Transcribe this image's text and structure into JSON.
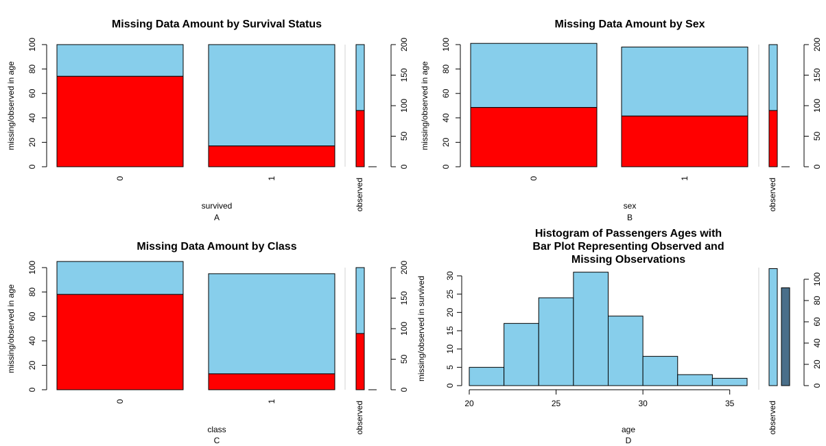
{
  "colors": {
    "missing": "#FF0000",
    "observed": "#87CEEB",
    "side_missing": "#4A6F8A",
    "axis": "#000000",
    "separator": "#D3D3D3"
  },
  "chart_data": [
    {
      "type": "bar",
      "panel": "A",
      "title": "Missing Data Amount by Survival Status",
      "xlabel": "survived",
      "ylabel": "missing/observed in age",
      "categories": [
        "0",
        "1"
      ],
      "ylim": [
        0,
        100
      ],
      "yticks": [
        "0",
        "20",
        "40",
        "60",
        "80",
        "100"
      ],
      "stack_total": [
        100,
        100
      ],
      "series": [
        {
          "name": "missing",
          "values": [
            74,
            17
          ]
        },
        {
          "name": "observed",
          "values": [
            26,
            83
          ]
        }
      ],
      "side_label": "observed",
      "side_ylim": [
        0,
        200
      ],
      "side_yticks": [
        "0",
        "50",
        "100",
        "150",
        "200"
      ],
      "side_values": {
        "missing": 92,
        "observed": 201
      }
    },
    {
      "type": "bar",
      "panel": "B",
      "title": "Missing Data Amount by Sex",
      "xlabel": "sex",
      "ylabel": "missing/observed in age",
      "categories": [
        "0",
        "1"
      ],
      "ylim": [
        0,
        100
      ],
      "yticks": [
        "0",
        "20",
        "40",
        "60",
        "80",
        "100"
      ],
      "stack_total": [
        101,
        98
      ],
      "series": [
        {
          "name": "missing",
          "values": [
            48.5,
            41.5
          ]
        },
        {
          "name": "observed",
          "values": [
            52.5,
            56.5
          ]
        }
      ],
      "side_label": "observed",
      "side_ylim": [
        0,
        200
      ],
      "side_yticks": [
        "0",
        "50",
        "100",
        "150",
        "200"
      ],
      "side_values": {
        "missing": 92,
        "observed": 201
      }
    },
    {
      "type": "bar",
      "panel": "C",
      "title": "Missing Data Amount by Class",
      "xlabel": "class",
      "ylabel": "missing/observed in age",
      "categories": [
        "0",
        "1"
      ],
      "ylim": [
        0,
        100
      ],
      "yticks": [
        "0",
        "20",
        "40",
        "60",
        "80",
        "100"
      ],
      "stack_total": [
        105,
        95
      ],
      "series": [
        {
          "name": "missing",
          "values": [
            78,
            13
          ]
        },
        {
          "name": "observed",
          "values": [
            27,
            82
          ]
        }
      ],
      "side_label": "observed",
      "side_ylabel": "missing/observed in survived",
      "side_ylim": [
        0,
        200
      ],
      "side_yticks": [
        "0",
        "50",
        "100",
        "150",
        "200"
      ],
      "side_values": {
        "missing": 92,
        "observed": 201
      }
    },
    {
      "type": "bar",
      "panel": "D",
      "title_lines": [
        "Histogram of Passengers Ages with",
        "Bar Plot Representing Observed and",
        "Missing Observations"
      ],
      "xlabel": "age",
      "bins": [
        [
          20,
          22
        ],
        [
          22,
          24
        ],
        [
          24,
          26
        ],
        [
          26,
          28
        ],
        [
          28,
          30
        ],
        [
          30,
          32
        ],
        [
          32,
          34
        ],
        [
          34,
          36
        ]
      ],
      "values": [
        5,
        17,
        24,
        31,
        19,
        8,
        3,
        2
      ],
      "xlim": [
        20,
        36
      ],
      "xticks": [
        "20",
        "25",
        "30",
        "35"
      ],
      "ylim": [
        0,
        30
      ],
      "yticks": [
        "0",
        "5",
        "10",
        "15",
        "20",
        "25",
        "30"
      ],
      "side_label": "observed",
      "side_ylim": [
        0,
        100
      ],
      "side_yticks": [
        "0",
        "20",
        "40",
        "60",
        "80",
        "100"
      ],
      "side_values": {
        "observed": 110,
        "missing": 92
      }
    }
  ]
}
